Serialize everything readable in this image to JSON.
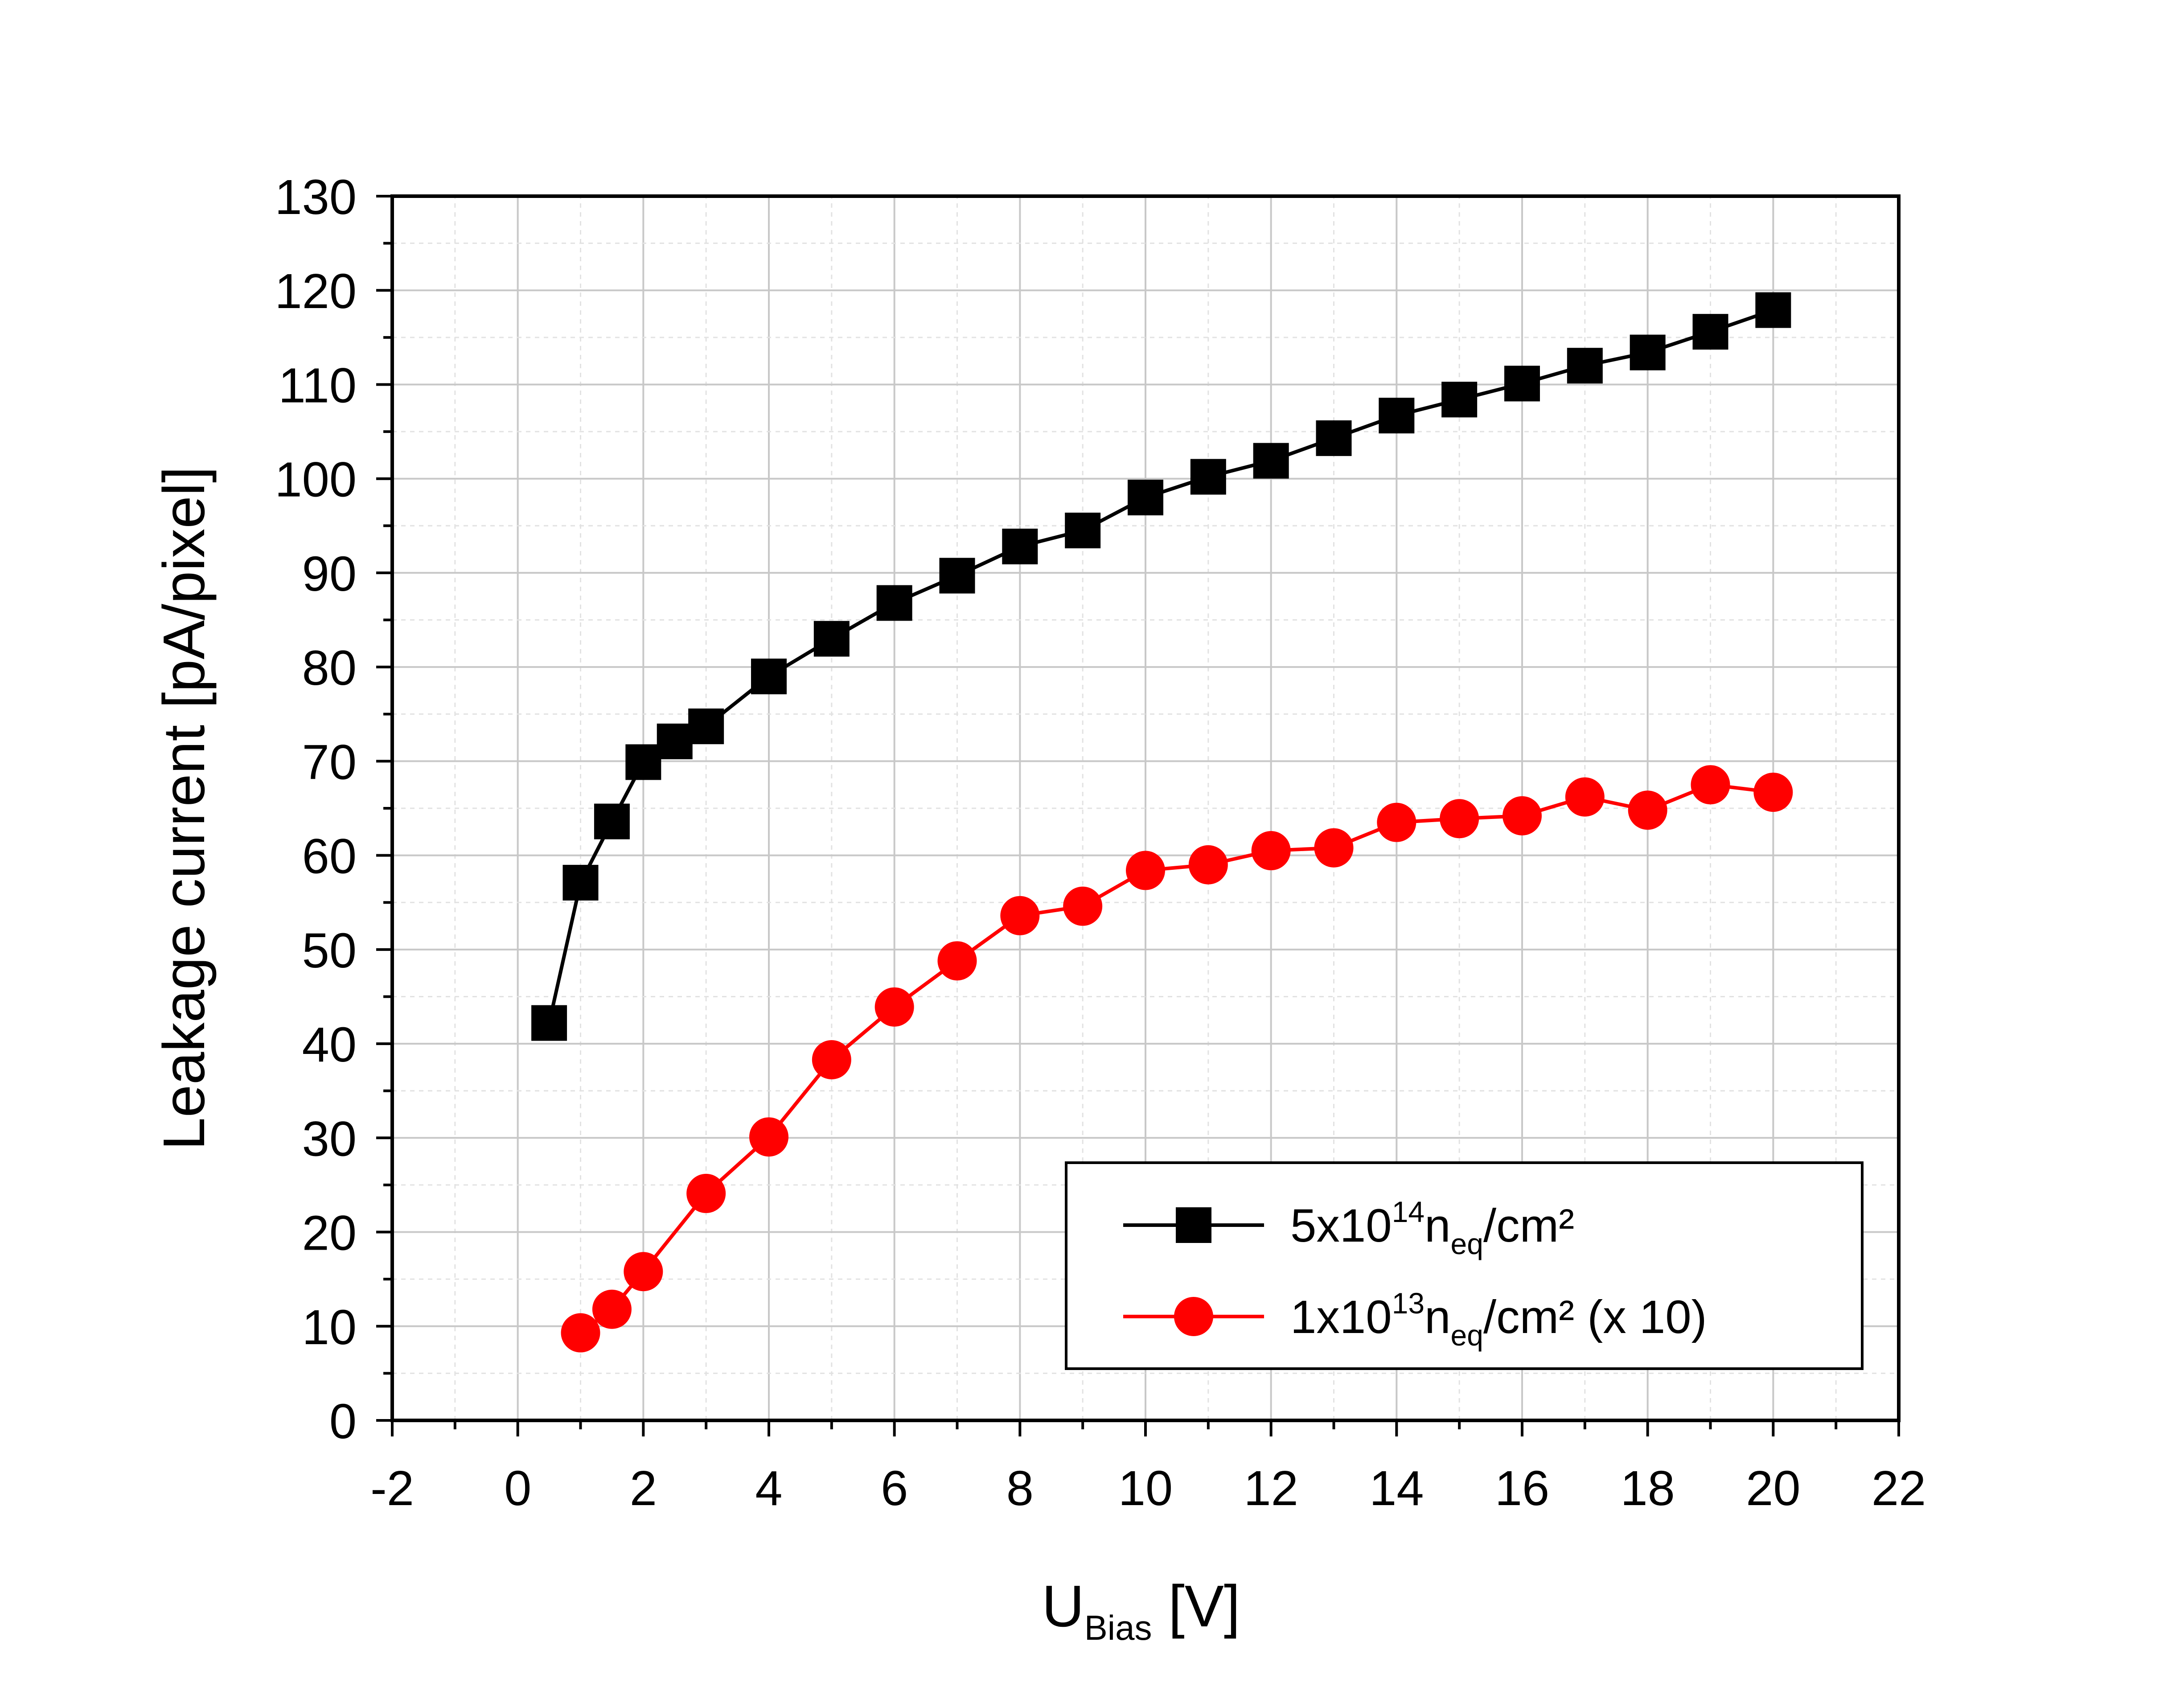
{
  "chart_data": {
    "type": "line",
    "title": "",
    "xlabel": {
      "main": "U",
      "sub": "Bias",
      "unit": " [V]"
    },
    "ylabel": "Leakage current [pA/pixel]",
    "xlim": [
      -2,
      22
    ],
    "ylim": [
      0,
      130
    ],
    "xticks": [
      "-2",
      "0",
      "2",
      "4",
      "6",
      "8",
      "10",
      "12",
      "14",
      "16",
      "18",
      "20",
      "22"
    ],
    "yticks": [
      "0",
      "10",
      "20",
      "30",
      "40",
      "50",
      "60",
      "70",
      "80",
      "90",
      "100",
      "110",
      "120",
      "130"
    ],
    "grid": true,
    "legend_position": "bottom-right",
    "series": [
      {
        "name": "5x10¹⁴ n_eq/cm²",
        "legend": {
          "pre": "5x10",
          "sup": "14",
          "n": "n",
          "sub": "eq",
          "post": "/cm²"
        },
        "color": "#000000",
        "marker": "square",
        "x": [
          0.5,
          1,
          1.5,
          2,
          2.5,
          3,
          4,
          5,
          6,
          7,
          8,
          9,
          10,
          11,
          12,
          13,
          14,
          15,
          16,
          17,
          18,
          19,
          20
        ],
        "values": [
          42.2,
          57.1,
          63.6,
          69.9,
          72.1,
          73.7,
          79.0,
          83.0,
          86.8,
          89.7,
          92.8,
          94.5,
          98.0,
          100.2,
          101.9,
          104.3,
          106.7,
          108.4,
          110.1,
          112.0,
          113.4,
          115.6,
          117.9
        ]
      },
      {
        "name": "1x10¹³ n_eq/cm² (x 10)",
        "legend": {
          "pre": "1x10",
          "sup": "13",
          "n": "n",
          "sub": "eq",
          "post": "/cm² (x 10)"
        },
        "color": "#ff0000",
        "marker": "circle",
        "x": [
          1,
          1.5,
          2,
          3,
          4,
          5,
          6,
          7,
          8,
          9,
          10,
          11,
          12,
          13,
          14,
          15,
          16,
          17,
          18,
          19,
          20
        ],
        "values": [
          9.3,
          11.8,
          15.8,
          24.1,
          30.1,
          38.3,
          43.9,
          48.8,
          53.6,
          54.6,
          58.4,
          59.0,
          60.5,
          60.8,
          63.5,
          63.9,
          64.2,
          66.2,
          64.8,
          67.5,
          66.7
        ]
      }
    ]
  }
}
